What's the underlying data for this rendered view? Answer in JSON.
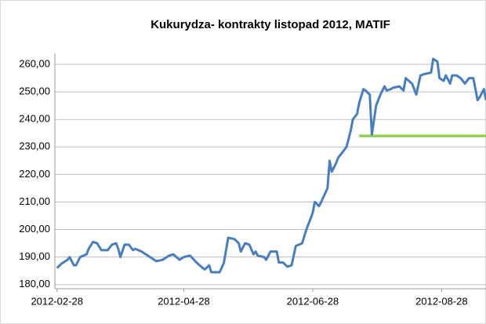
{
  "chart_data": {
    "type": "line",
    "title": "Kukurydza- kontrakty listopad 2012, MATIF",
    "x": [
      "2012-02-28",
      "2012-03-01",
      "2012-03-04",
      "2012-03-05",
      "2012-03-07",
      "2012-03-08",
      "2012-03-10",
      "2012-03-13",
      "2012-03-14",
      "2012-03-16",
      "2012-03-18",
      "2012-03-20",
      "2012-03-23",
      "2012-03-25",
      "2012-03-27",
      "2012-03-28",
      "2012-03-29",
      "2012-03-31",
      "2012-04-02",
      "2012-04-04",
      "2012-04-05",
      "2012-04-08",
      "2012-04-11",
      "2012-04-15",
      "2012-04-18",
      "2012-04-21",
      "2012-04-23",
      "2012-04-26",
      "2012-04-28",
      "2012-05-01",
      "2012-05-04",
      "2012-05-07",
      "2012-05-08",
      "2012-05-10",
      "2012-05-11",
      "2012-05-15",
      "2012-05-17",
      "2012-05-19",
      "2012-05-22",
      "2012-05-24",
      "2012-05-25",
      "2012-05-27",
      "2012-05-29",
      "2012-05-31",
      "2012-06-01",
      "2012-06-02",
      "2012-06-05",
      "2012-06-06",
      "2012-06-08",
      "2012-06-11",
      "2012-06-12",
      "2012-06-14",
      "2012-06-16",
      "2012-06-18",
      "2012-06-20",
      "2012-06-23",
      "2012-06-25",
      "2012-06-27",
      "2012-06-28",
      "2012-06-29",
      "2012-07-01",
      "2012-07-02",
      "2012-07-05",
      "2012-07-06",
      "2012-07-07",
      "2012-07-09",
      "2012-07-10",
      "2012-07-12",
      "2012-07-14",
      "2012-07-16",
      "2012-07-17",
      "2012-07-19",
      "2012-07-20",
      "2012-07-22",
      "2012-07-23",
      "2012-07-25",
      "2012-07-26",
      "2012-07-28",
      "2012-07-29",
      "2012-07-30",
      "2012-08-01",
      "2012-08-02",
      "2012-08-04",
      "2012-08-05",
      "2012-08-08",
      "2012-08-10",
      "2012-08-11",
      "2012-08-14",
      "2012-08-16",
      "2012-08-18",
      "2012-08-20",
      "2012-08-23",
      "2012-08-24",
      "2012-08-26",
      "2012-08-27",
      "2012-08-29",
      "2012-08-30",
      "2012-09-01",
      "2012-09-02",
      "2012-09-04",
      "2012-09-06",
      "2012-09-08",
      "2012-09-10",
      "2012-09-12",
      "2012-09-14",
      "2012-09-15",
      "2012-09-17",
      "2012-09-18"
    ],
    "series": [
      {
        "color": "#4a7ebb",
        "values": [
          186,
          187.5,
          189,
          190,
          187,
          187,
          190,
          191,
          193,
          195.5,
          195,
          192.5,
          192.5,
          194.5,
          195,
          193,
          190,
          194.5,
          194.5,
          192.5,
          193,
          192,
          190.5,
          188.5,
          189,
          190.5,
          191,
          189,
          190,
          190.5,
          188,
          186,
          185.5,
          187,
          184.5,
          184.5,
          188,
          197,
          196.5,
          195,
          192,
          195,
          194.5,
          191,
          192,
          190.5,
          190,
          189,
          192,
          192,
          188,
          188,
          186.5,
          187,
          194,
          195,
          200,
          204,
          206,
          210,
          208.5,
          210,
          215,
          225,
          221,
          224,
          226,
          228,
          230,
          236,
          240,
          242,
          246,
          251,
          250.5,
          249,
          234.5,
          245,
          247,
          249,
          252,
          250.5,
          251,
          251.5,
          252,
          250.5,
          255,
          253,
          249,
          256,
          256.5,
          257,
          262,
          261,
          255,
          254,
          256,
          253,
          256,
          256,
          255,
          253,
          255,
          255,
          247,
          248,
          251,
          247
        ]
      }
    ],
    "reference_line": {
      "value": 234,
      "x": [
        "2012-07-20",
        "2012-09-18"
      ],
      "color": "#92d050"
    },
    "xlim": [
      "2012-02-27",
      "2012-09-18"
    ],
    "xticks": [
      "2012-02-28",
      "2012-04-28",
      "2012-06-28",
      "2012-08-28"
    ],
    "ylim": [
      178.5,
      264
    ],
    "yticks": [
      {
        "value": 180,
        "label": "180,00"
      },
      {
        "value": 190,
        "label": "190,00"
      },
      {
        "value": 200,
        "label": "200,00"
      },
      {
        "value": 210,
        "label": "210,00"
      },
      {
        "value": 220,
        "label": "220,00"
      },
      {
        "value": 230,
        "label": "230,00"
      },
      {
        "value": 240,
        "label": "240,00"
      },
      {
        "value": 250,
        "label": "250,00"
      },
      {
        "value": 260,
        "label": "260,00"
      }
    ],
    "grid": true
  }
}
